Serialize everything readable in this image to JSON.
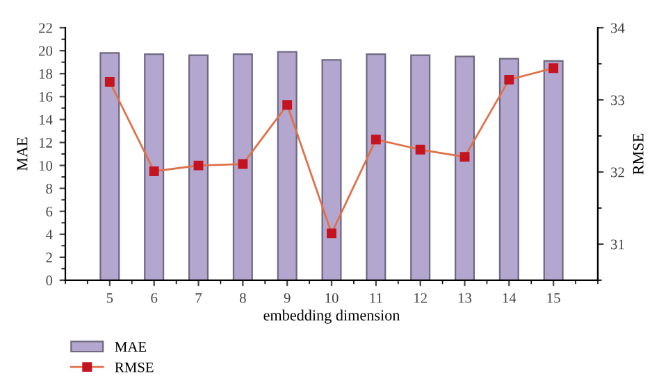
{
  "chart_data": {
    "type": "bar",
    "xlabel": "embedding dimension",
    "ylabel": "MAE",
    "y2label": "RMSE",
    "categories": [
      "5",
      "6",
      "7",
      "8",
      "9",
      "10",
      "11",
      "12",
      "13",
      "14",
      "15"
    ],
    "series": [
      {
        "name": "MAE",
        "color": "#b4a7cf",
        "values": [
          19.8,
          19.7,
          19.6,
          19.7,
          19.9,
          19.2,
          19.7,
          19.6,
          19.5,
          19.3,
          19.1
        ]
      },
      {
        "name": "RMSE",
        "type": "line",
        "axis": "y2",
        "color": "#c41420",
        "marker": "square",
        "values": [
          33.25,
          32.01,
          32.09,
          32.11,
          32.93,
          31.15,
          32.45,
          32.31,
          32.21,
          33.28,
          33.44
        ]
      }
    ],
    "ylim": [
      0,
      22
    ],
    "yticks": [
      0,
      2,
      4,
      6,
      8,
      10,
      12,
      14,
      16,
      18,
      20,
      22
    ],
    "y2lim": [
      30.5,
      34
    ],
    "y2ticks": [
      31,
      32,
      33,
      34
    ],
    "grid": false,
    "legend": "bottom left"
  }
}
